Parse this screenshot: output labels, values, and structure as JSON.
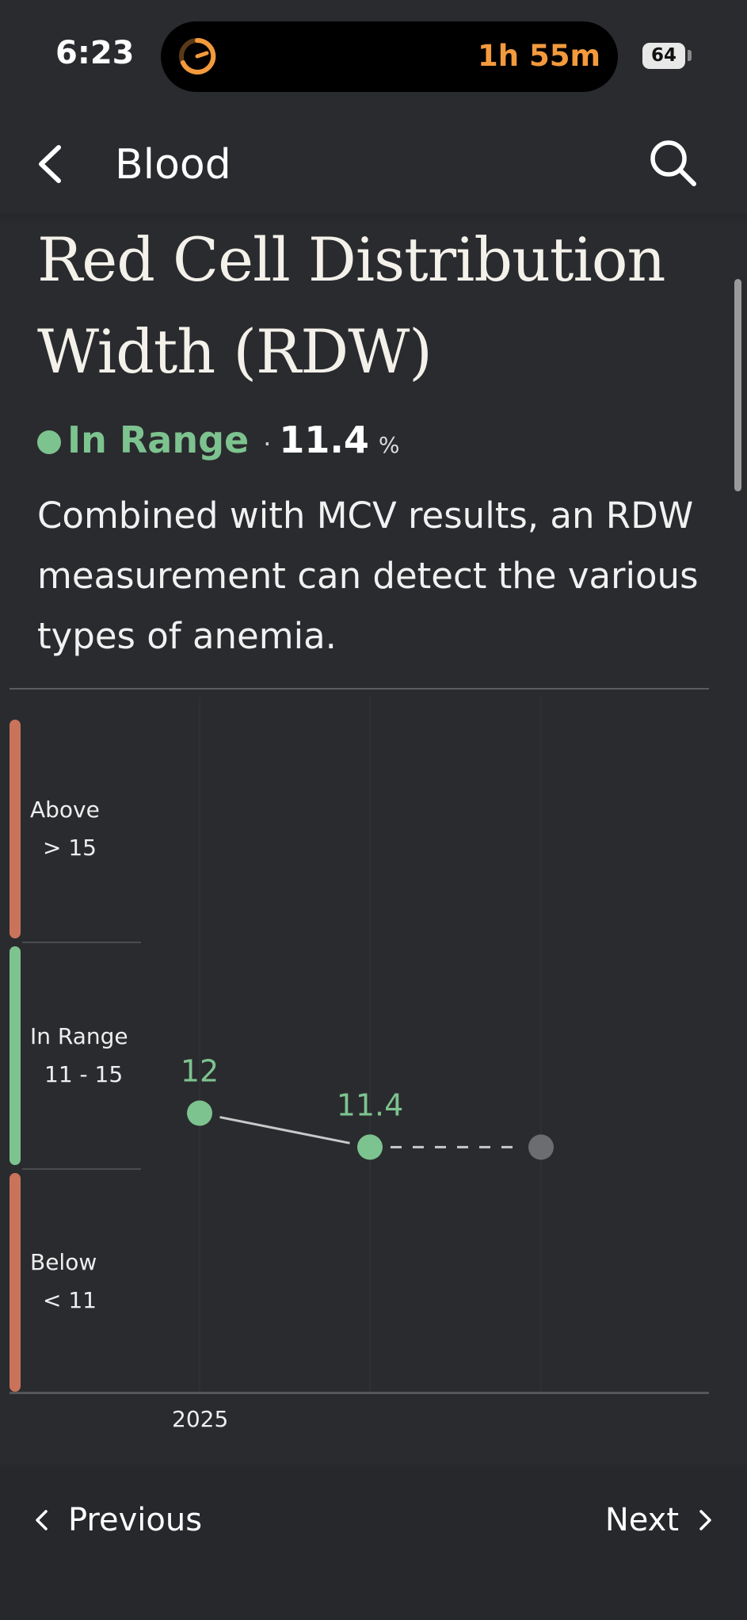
{
  "status_bar": {
    "time": "6:23",
    "timer": "1h 55m",
    "battery": "64"
  },
  "header": {
    "title": "Blood"
  },
  "biomarker": {
    "title": "Red Cell Distribution Width (RDW)",
    "status": "In Range",
    "separator": "·",
    "value": "11.4",
    "unit": "%",
    "description": "Combined with MCV results, an RDW measurement can detect the various types of anemia."
  },
  "chart_data": {
    "type": "line",
    "bands": [
      {
        "label": "Above",
        "range": "> 15",
        "color": "#c9735a"
      },
      {
        "label": "In Range",
        "range": "11 - 15",
        "color": "#7dc38f"
      },
      {
        "label": "Below",
        "range": "< 11",
        "color": "#c9735a"
      }
    ],
    "x_tick_labels": [
      "2025"
    ],
    "points": [
      {
        "value": 12,
        "label": "12",
        "status": "in_range"
      },
      {
        "value": 11.4,
        "label": "11.4",
        "status": "in_range"
      },
      {
        "value": null,
        "label": "",
        "status": "projected"
      }
    ],
    "colors": {
      "in_range": "#7dc38f",
      "projected": "#6c6d70",
      "line": "#c9c9c9"
    }
  },
  "footer": {
    "previous": "Previous",
    "next": "Next"
  }
}
